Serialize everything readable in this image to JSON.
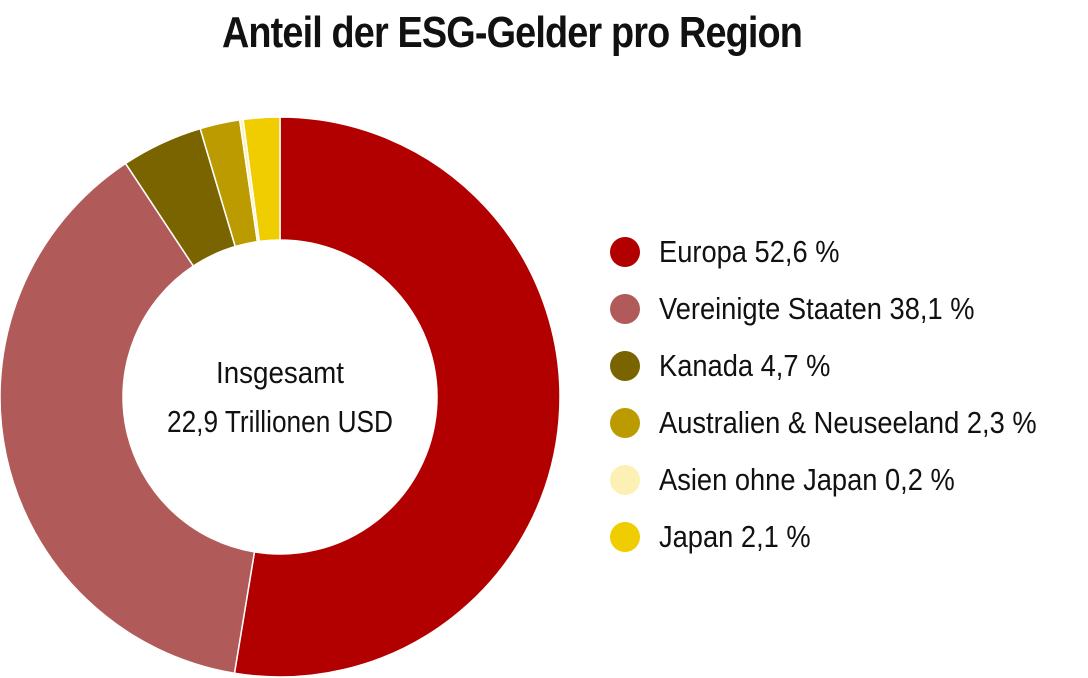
{
  "chart_data": {
    "type": "pie",
    "title": "Anteil der ESG-Gelder pro Region",
    "center_label": [
      "Insgesamt",
      "22,9 Trillionen USD"
    ],
    "donut": true,
    "legend_position": "right",
    "slices": [
      {
        "label": "Europa",
        "value": 52.6,
        "value_label": "52,6 %",
        "color": "#b20000"
      },
      {
        "label": "Vereinigte Staaten",
        "value": 38.1,
        "value_label": "38,1 %",
        "color": "#b05a59"
      },
      {
        "label": "Kanada",
        "value": 4.7,
        "value_label": "4,7 %",
        "color": "#7a6400"
      },
      {
        "label": "Australien & Neuseeland",
        "value": 2.3,
        "value_label": "2,3 %",
        "color": "#bb9b00"
      },
      {
        "label": "Asien ohne Japan",
        "value": 0.2,
        "value_label": "0,2 %",
        "color": "#fdf0b5"
      },
      {
        "label": "Japan",
        "value": 2.1,
        "value_label": "2,1 %",
        "color": "#f0cd00"
      }
    ]
  }
}
